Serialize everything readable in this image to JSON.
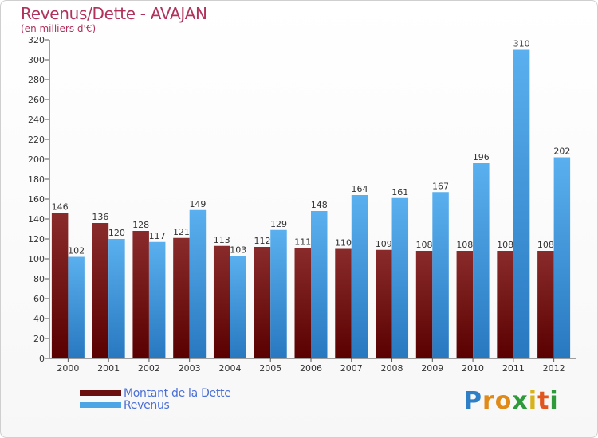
{
  "header": {
    "title": "Revenus/Dette - AVAJAN",
    "subtitle": "(en milliers d'€)"
  },
  "legend": {
    "items": [
      {
        "label": "Montant de la Dette",
        "color": "#6b0e0e"
      },
      {
        "label": "Revenus",
        "color": "#4ea5e6"
      }
    ]
  },
  "logo": {
    "letters": [
      {
        "ch": "P",
        "color": "#2d7fc6"
      },
      {
        "ch": "r",
        "color": "#e08a18"
      },
      {
        "ch": "o",
        "color": "#e08a18"
      },
      {
        "ch": "x",
        "color": "#2e9a3a"
      },
      {
        "ch": "i",
        "color": "#d8b21a"
      },
      {
        "ch": "t",
        "color": "#e0561e"
      },
      {
        "ch": "i",
        "color": "#2e9a3a"
      }
    ]
  },
  "chart_data": {
    "type": "bar",
    "title": "Revenus/Dette - AVAJAN",
    "subtitle": "(en milliers d'€)",
    "xlabel": "",
    "ylabel": "",
    "ylim": [
      0,
      320
    ],
    "yticks": [
      0,
      20,
      40,
      60,
      80,
      100,
      120,
      140,
      160,
      180,
      200,
      220,
      240,
      260,
      280,
      300,
      320
    ],
    "categories": [
      "2000",
      "2001",
      "2002",
      "2003",
      "2004",
      "2005",
      "2006",
      "2007",
      "2008",
      "2009",
      "2010",
      "2011",
      "2012"
    ],
    "series": [
      {
        "name": "Montant de la Dette",
        "color": "#6b0e0e",
        "values": [
          146,
          136,
          128,
          121,
          113,
          112,
          111,
          110,
          109,
          108,
          108,
          108,
          108
        ]
      },
      {
        "name": "Revenus",
        "color": "#4ea5e6",
        "values": [
          102,
          120,
          117,
          149,
          103,
          129,
          148,
          164,
          161,
          167,
          196,
          310,
          202
        ]
      }
    ],
    "grid": false,
    "legend_position": "bottom-left"
  }
}
